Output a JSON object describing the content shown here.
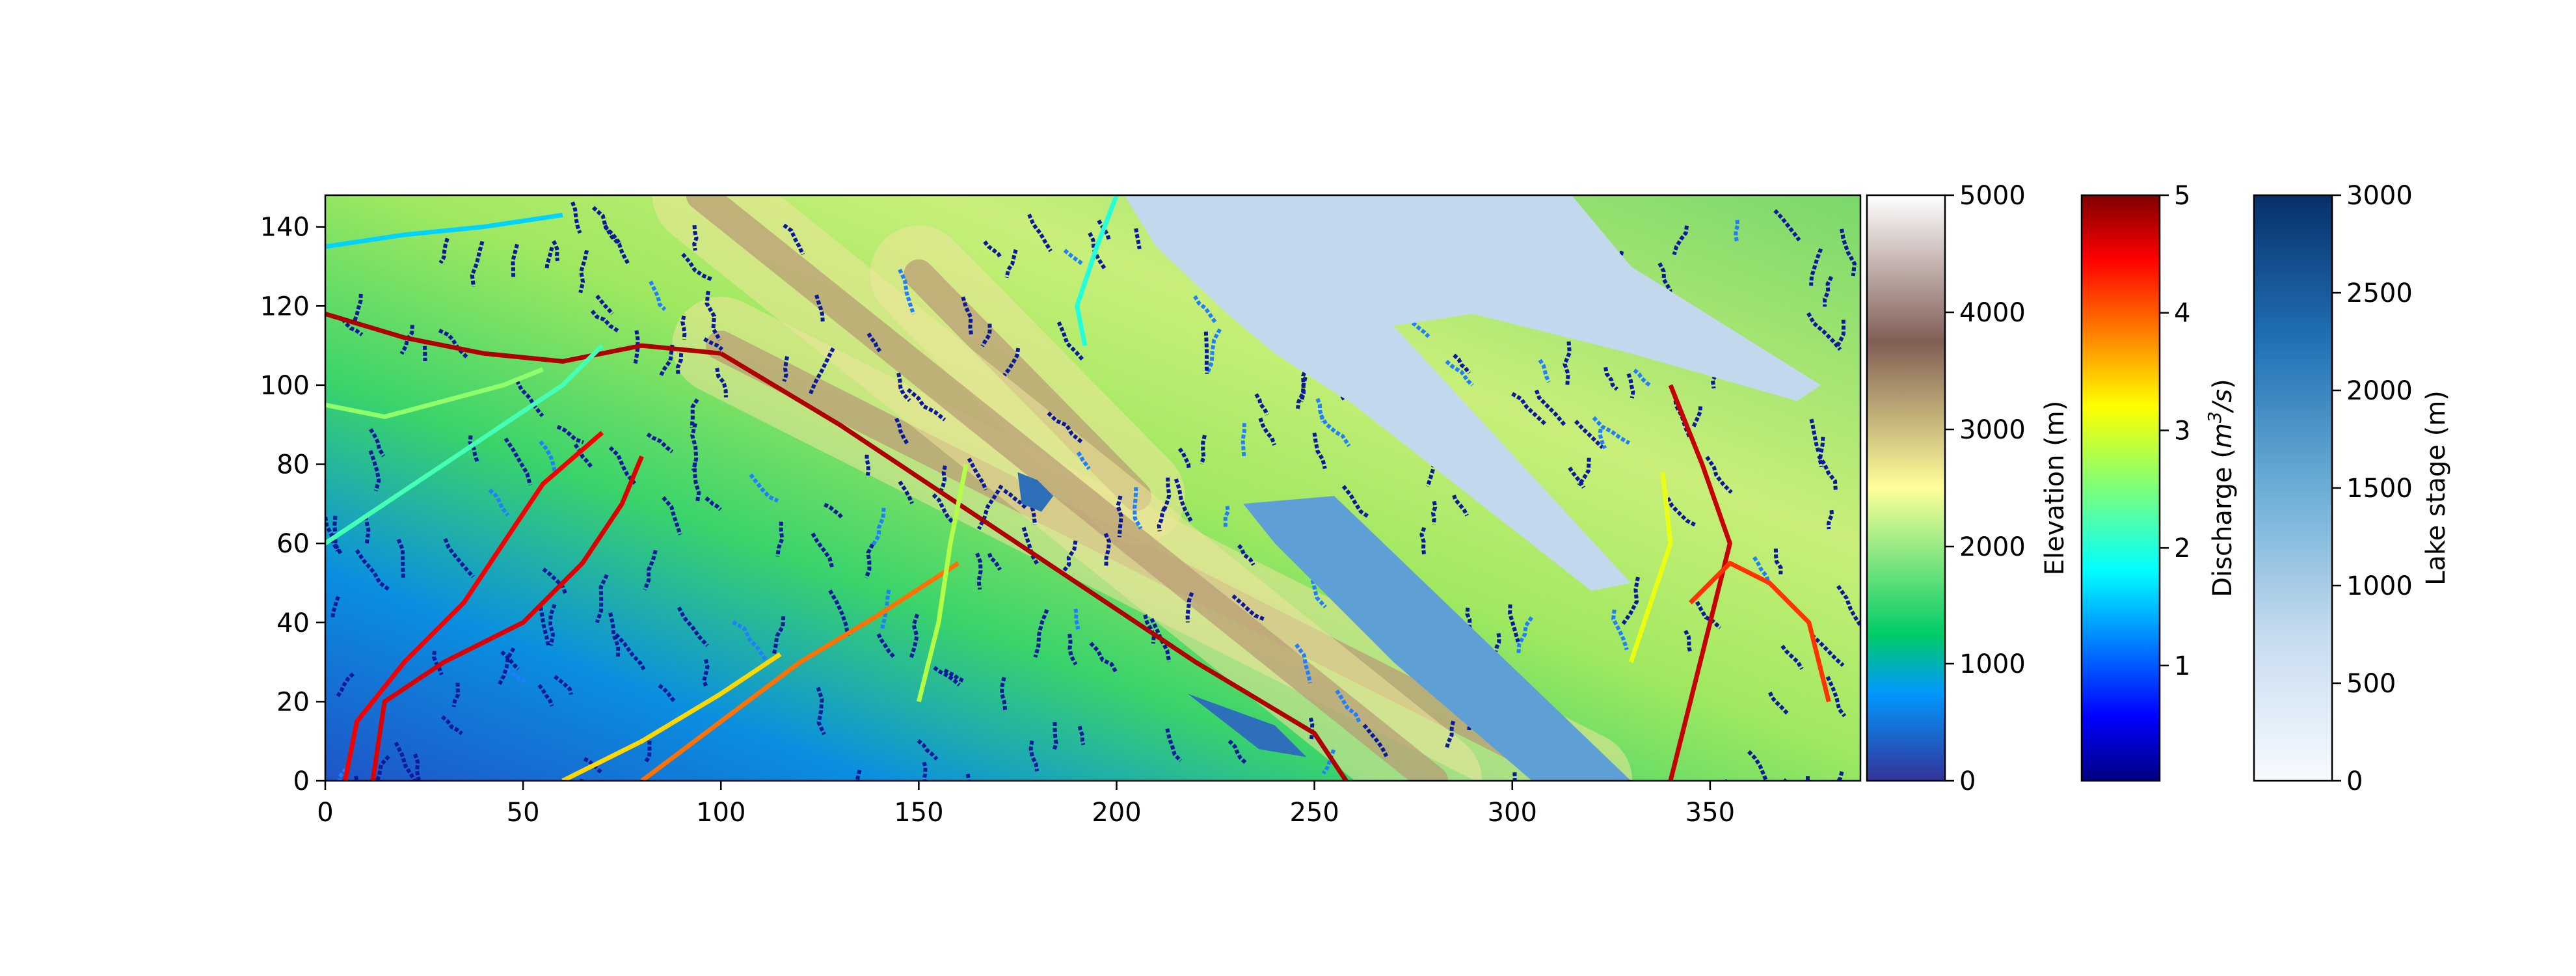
{
  "chart_data": [
    {
      "type": "heatmap",
      "description_role": "terrain map",
      "xlim": [
        0,
        388
      ],
      "ylim": [
        0,
        148
      ],
      "x_ticks": [
        "0",
        "50",
        "100",
        "150",
        "200",
        "250",
        "300",
        "350"
      ],
      "x_tick_values": [
        0,
        50,
        100,
        150,
        200,
        250,
        300,
        350
      ],
      "y_ticks": [
        "0",
        "20",
        "40",
        "60",
        "80",
        "100",
        "120",
        "140"
      ],
      "y_tick_values": [
        0,
        20,
        40,
        60,
        80,
        100,
        120,
        140
      ],
      "grid": false,
      "layers": [
        "elevation",
        "discharge",
        "lake stage"
      ],
      "ridges": [
        {
          "from": [
            100,
            110
          ],
          "to": [
            318,
            0
          ]
        },
        {
          "from": [
            150,
            128
          ],
          "to": [
            205,
            72
          ]
        },
        {
          "from": [
            95,
            148
          ],
          "to": [
            280,
            0
          ]
        }
      ],
      "lakes": [
        {
          "polygon": [
            [
              202,
              148
            ],
            [
              315,
              148
            ],
            [
              330,
              130
            ],
            [
              378,
              100
            ],
            [
              372,
              96
            ],
            [
              330,
              108
            ],
            [
              290,
              118
            ],
            [
              270,
              115
            ],
            [
              330,
              50
            ],
            [
              320,
              48
            ],
            [
              260,
              95
            ],
            [
              240,
              108
            ],
            [
              228,
              118
            ],
            [
              210,
              135
            ]
          ]
        },
        {
          "polygon": [
            [
              232,
              70
            ],
            [
              255,
              72
            ],
            [
              330,
              0
            ],
            [
              305,
              0
            ],
            [
              270,
              30
            ],
            [
              240,
              60
            ]
          ]
        },
        {
          "polygon": [
            [
              175,
              78
            ],
            [
              180,
              76
            ],
            [
              184,
              72
            ],
            [
              181,
              68
            ],
            [
              176,
              70
            ]
          ]
        },
        {
          "polygon": [
            [
              218,
              22
            ],
            [
              240,
              14
            ],
            [
              248,
              6
            ],
            [
              236,
              8
            ]
          ]
        }
      ],
      "rivers": [
        {
          "q": 4.8,
          "points": [
            [
              0,
              118
            ],
            [
              20,
              112
            ],
            [
              40,
              108
            ],
            [
              60,
              106
            ],
            [
              80,
              110
            ],
            [
              100,
              108
            ]
          ]
        },
        {
          "q": 4.8,
          "points": [
            [
              100,
              108
            ],
            [
              130,
              90
            ],
            [
              160,
              70
            ],
            [
              190,
              50
            ],
            [
              220,
              30
            ],
            [
              250,
              12
            ],
            [
              258,
              0
            ]
          ]
        },
        {
          "q": 4.5,
          "points": [
            [
              5,
              0
            ],
            [
              8,
              15
            ],
            [
              20,
              30
            ],
            [
              35,
              45
            ],
            [
              45,
              60
            ],
            [
              55,
              75
            ],
            [
              70,
              88
            ]
          ]
        },
        {
          "q": 4.6,
          "points": [
            [
              12,
              0
            ],
            [
              15,
              20
            ],
            [
              30,
              30
            ],
            [
              50,
              40
            ],
            [
              65,
              55
            ],
            [
              75,
              70
            ],
            [
              80,
              82
            ]
          ]
        },
        {
          "q": 3.9,
          "points": [
            [
              80,
              0
            ],
            [
              100,
              15
            ],
            [
              120,
              30
            ],
            [
              140,
              42
            ],
            [
              160,
              55
            ]
          ]
        },
        {
          "q": 3.4,
          "points": [
            [
              60,
              0
            ],
            [
              80,
              10
            ],
            [
              100,
              22
            ],
            [
              115,
              32
            ]
          ]
        },
        {
          "q": 2.8,
          "points": [
            [
              150,
              20
            ],
            [
              155,
              40
            ],
            [
              158,
              60
            ],
            [
              162,
              80
            ]
          ]
        },
        {
          "q": 4.7,
          "points": [
            [
              340,
              0
            ],
            [
              345,
              20
            ],
            [
              350,
              40
            ],
            [
              355,
              60
            ],
            [
              348,
              80
            ],
            [
              340,
              100
            ]
          ]
        },
        {
          "q": 4.2,
          "points": [
            [
              380,
              20
            ],
            [
              375,
              40
            ],
            [
              365,
              50
            ],
            [
              355,
              55
            ],
            [
              345,
              45
            ]
          ]
        },
        {
          "q": 2.2,
          "points": [
            [
              0,
              60
            ],
            [
              15,
              70
            ],
            [
              30,
              80
            ],
            [
              45,
              90
            ],
            [
              60,
              100
            ],
            [
              70,
              110
            ]
          ]
        },
        {
          "q": 2.6,
          "points": [
            [
              0,
              95
            ],
            [
              15,
              92
            ],
            [
              30,
              96
            ],
            [
              45,
              100
            ],
            [
              55,
              104
            ]
          ]
        },
        {
          "q": 1.6,
          "points": [
            [
              0,
              135
            ],
            [
              20,
              138
            ],
            [
              40,
              140
            ],
            [
              60,
              143
            ]
          ]
        },
        {
          "q": 3.1,
          "points": [
            [
              330,
              30
            ],
            [
              335,
              45
            ],
            [
              340,
              60
            ],
            [
              338,
              78
            ]
          ]
        },
        {
          "q": 2.0,
          "points": [
            [
              200,
              148
            ],
            [
              195,
              135
            ],
            [
              190,
              120
            ],
            [
              192,
              110
            ]
          ]
        }
      ]
    },
    {
      "type": "colorbar",
      "label": "Elevation (m)",
      "ticks": [
        "0",
        "1000",
        "2000",
        "3000",
        "4000",
        "5000"
      ],
      "tick_values": [
        0,
        1000,
        2000,
        3000,
        4000,
        5000
      ],
      "range": [
        0,
        5000
      ],
      "colormap": "terrain",
      "stops": [
        {
          "v": 0,
          "color": "#333399"
        },
        {
          "v": 750,
          "color": "#0198fe"
        },
        {
          "v": 1250,
          "color": "#00cc66"
        },
        {
          "v": 2500,
          "color": "#ffff99"
        },
        {
          "v": 3750,
          "color": "#815e56"
        },
        {
          "v": 5000,
          "color": "#ffffff"
        }
      ]
    },
    {
      "type": "colorbar",
      "label_prefix": "Discharge (",
      "label_math_base": "m",
      "label_math_sup": "3",
      "label_math_rest": "/s",
      "label_suffix": ")",
      "ticks": [
        "1",
        "2",
        "3",
        "4",
        "5"
      ],
      "tick_values": [
        1,
        2,
        3,
        4,
        5
      ],
      "range": [
        0.02,
        5
      ],
      "colormap": "jet",
      "stops": [
        {
          "v": 0.0,
          "color": "#000080"
        },
        {
          "v": 0.11,
          "color": "#0000ff"
        },
        {
          "v": 0.36,
          "color": "#00ffff"
        },
        {
          "v": 0.5,
          "color": "#7dff7a"
        },
        {
          "v": 0.64,
          "color": "#ffff00"
        },
        {
          "v": 0.89,
          "color": "#ff0000"
        },
        {
          "v": 1.0,
          "color": "#800000"
        }
      ]
    },
    {
      "type": "colorbar",
      "label": "Lake stage (m)",
      "ticks": [
        "0",
        "500",
        "1000",
        "1500",
        "2000",
        "2500",
        "3000"
      ],
      "tick_values": [
        0,
        500,
        1000,
        1500,
        2000,
        2500,
        3000
      ],
      "range": [
        0,
        3000
      ],
      "colormap": "Blues",
      "stops": [
        {
          "v": 0.0,
          "color": "#f7fbff"
        },
        {
          "v": 0.25,
          "color": "#c6dbef"
        },
        {
          "v": 0.5,
          "color": "#6baed6"
        },
        {
          "v": 0.75,
          "color": "#2171b5"
        },
        {
          "v": 1.0,
          "color": "#08306b"
        }
      ]
    }
  ]
}
